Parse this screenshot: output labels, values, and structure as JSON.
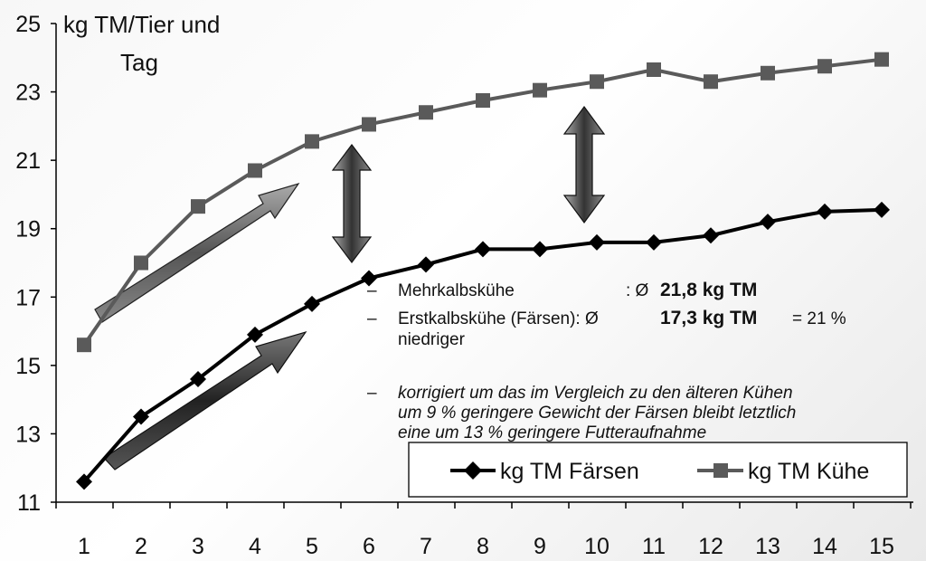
{
  "chart_data": {
    "type": "line",
    "ylabel_line1": "kg TM/Tier und",
    "ylabel_line2": "Tag",
    "ylim": [
      11,
      25
    ],
    "yticks": [
      "11",
      "13",
      "15",
      "17",
      "19",
      "21",
      "23",
      "25"
    ],
    "x": [
      "1",
      "2",
      "3",
      "4",
      "5",
      "6",
      "7",
      "8",
      "9",
      "10",
      "11",
      "12",
      "13",
      "14",
      "15"
    ],
    "series": [
      {
        "name": "kg TM Färsen",
        "marker": "diamond",
        "color": "#000000",
        "values": [
          11.6,
          13.5,
          14.6,
          15.9,
          16.8,
          17.55,
          17.95,
          18.4,
          18.4,
          18.6,
          18.6,
          18.8,
          19.2,
          19.5,
          19.55
        ]
      },
      {
        "name": "kg TM Kühe",
        "marker": "square",
        "color": "#5a5a5a",
        "values": [
          15.6,
          18.0,
          19.65,
          20.7,
          21.55,
          22.05,
          22.4,
          22.75,
          23.05,
          23.3,
          23.65,
          23.3,
          23.55,
          23.75,
          23.95
        ]
      }
    ],
    "grid": false,
    "legend": "bottom-right",
    "annotations": {
      "dash": "–",
      "line1_label": "Mehrkalbsküh​e",
      "line1_sep": ": Ø",
      "line1_value": "21,8 kg TM",
      "line2_label": "Erstkalbsküh​e (Färsen): Ø",
      "line2_value": "17,3 kg TM",
      "line2_suffix": "= 21 %",
      "line3": "niedriger",
      "italic_1": "korrigiert um das im Vergleich zu den älteren Kühen",
      "italic_2": "um 9 % geringere Gewicht der Färsen bleibt letztlich",
      "italic_3": "eine um 13 % geringere Futteraufnahme"
    }
  }
}
